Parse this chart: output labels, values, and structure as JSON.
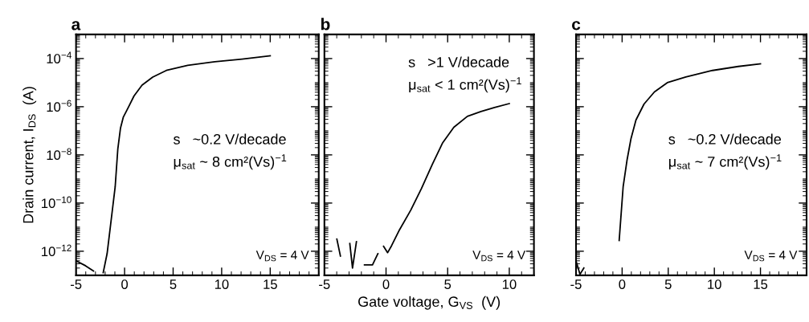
{
  "chart_data": [
    {
      "type": "line",
      "title": "a",
      "ylabel": "Drain current, I$_{DS}$  (A)",
      "log": "y",
      "grid": false,
      "marker": "none",
      "line_style": "solid",
      "xlim": [
        -5,
        20
      ],
      "xticks": [
        -5,
        0,
        5,
        10,
        15
      ],
      "ylim": [
        1e-13,
        0.001
      ],
      "yticks": [
        {
          "value": 1e-12,
          "label": "10$^{−12}$"
        },
        {
          "value": 1e-10,
          "label": "10$^{−10}$"
        },
        {
          "value": 1e-08,
          "label": "10$^{−8}$"
        },
        {
          "value": 1e-06,
          "label": "10$^{−6}$"
        },
        {
          "value": 0.0001,
          "label": "10$^{−4}$"
        }
      ],
      "annotations": [
        "s   ~0.2 V/decade",
        "μ$_{sat}$ ~ 8 cm²(Vs)$^{−1}$",
        "V$_{DS}$ = 4 V"
      ],
      "series": [
        {
          "color": "#000000",
          "x": [
            -5,
            -4.03,
            -3.2,
            -2.5,
            -2.2,
            -1.8,
            -0.97,
            -0.7,
            -0.42,
            -0.14,
            0.42,
            0.97,
            1.8,
            2.9,
            4.3,
            6.5,
            9.3,
            12.1,
            15
          ],
          "values": [
            4e-13,
            2.5e-13,
            1.5e-13,
            null,
            1.3e-13,
            8e-13,
            4.7e-10,
            1.7e-08,
            1.3e-07,
            3.6e-07,
            1e-06,
            2.8e-06,
            7.9e-06,
            1.7e-05,
            3.2e-05,
            5.2e-05,
            7.4e-05,
            9.5e-05,
            0.00013
          ]
        }
      ]
    },
    {
      "type": "line",
      "title": "b",
      "xlabel": "Gate voltage, G$_{VS}$  (V)",
      "log": "y",
      "grid": false,
      "marker": "none",
      "line_style": "solid",
      "tick_labels": "x",
      "xlim": [
        -5,
        12
      ],
      "xticks": [
        -5,
        0,
        5,
        10
      ],
      "ylim": [
        1e-13,
        0.001
      ],
      "yticks": [
        {
          "value": 1e-12,
          "label": null
        },
        {
          "value": 1e-10,
          "label": null
        },
        {
          "value": 1e-08,
          "label": null
        },
        {
          "value": 1e-06,
          "label": null
        },
        {
          "value": 0.0001,
          "label": null
        }
      ],
      "annotations": [
        "s   >1 V/decade",
        "μ$_{sat}$ < 1 cm²(Vs)$^{−1}$",
        "V$_{DS}$ = 4 V"
      ],
      "series": [
        {
          "color": "#000000",
          "x": [
            -3.99,
            -3.7,
            -3.27,
            -2.94,
            -2.72,
            -2.4,
            -2.2,
            -1.75,
            -1.1,
            -0.66,
            -0.44,
            -0.2,
            0.13,
            0.45,
            1.1,
            2.0,
            2.87,
            3.75,
            4.6,
            5.5,
            6.6,
            7.7,
            8.8,
            10
          ],
          "values": [
            3.2e-12,
            6.3e-13,
            null,
            2.1e-12,
            2e-13,
            2.5e-12,
            null,
            2.7e-13,
            2.7e-13,
            7.9e-13,
            null,
            1.6e-12,
            8.7e-13,
            1.7e-12,
            7.9e-12,
            5e-11,
            4e-10,
            4e-09,
            3.2e-08,
            1.4e-07,
            4e-07,
            6.3e-07,
            9.3e-07,
            1.35e-06
          ]
        }
      ]
    },
    {
      "type": "line",
      "title": "c",
      "log": "y",
      "grid": false,
      "marker": "none",
      "line_style": "solid",
      "tick_labels": "x",
      "xlim": [
        -5,
        20
      ],
      "xticks": [
        -5,
        0,
        5,
        10,
        15
      ],
      "ylim": [
        1e-13,
        0.001
      ],
      "yticks": [
        {
          "value": 1e-12,
          "label": null
        },
        {
          "value": 1e-10,
          "label": null
        },
        {
          "value": 1e-08,
          "label": null
        },
        {
          "value": 1e-06,
          "label": null
        },
        {
          "value": 0.0001,
          "label": null
        }
      ],
      "annotations": [
        "s   ~0.2 V/decade",
        "μ$_{sat}$ ~ 7 cm²(Vs)$^{−1}$",
        "V$_{DS}$ = 4 V"
      ],
      "series": [
        {
          "color": "#000000",
          "x": [
            -4.96,
            -4.57,
            -4.15,
            -3.72,
            -3.0,
            -2.4,
            -0.74,
            -0.32,
            0.11,
            0.53,
            0.96,
            1.5,
            2.38,
            3.5,
            4.9,
            6.9,
            9.8,
            12.6,
            15
          ],
          "values": [
            3.5e-13,
            1.1e-13,
            2e-13,
            null,
            null,
            null,
            null,
            2.8e-12,
            4.7e-10,
            6e-09,
            4.7e-08,
            2.8e-07,
            1.3e-06,
            4.1e-06,
            1e-05,
            1.7e-05,
            3.2e-05,
            4.7e-05,
            6e-05
          ]
        }
      ]
    }
  ]
}
